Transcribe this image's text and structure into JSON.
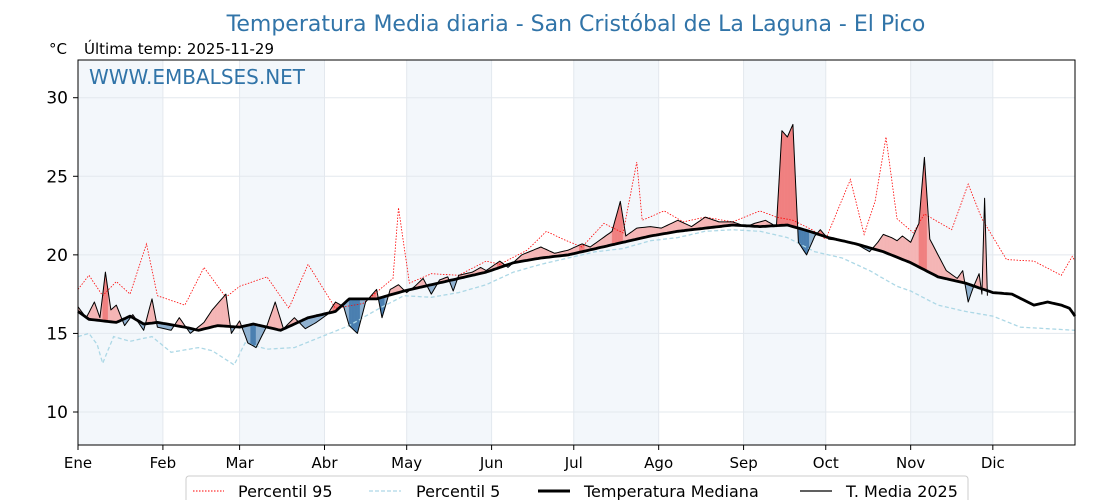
{
  "chart_data": {
    "type": "line",
    "title": "Temperatura Media diaria - San Cristóbal de La Laguna - El Pico",
    "subtitle": "Última temp: 2025-11-29",
    "ylabel": "°C",
    "xlabel": "",
    "watermark": "WWW.EMBALSES.NET",
    "ylim": [
      7.9,
      32.4
    ],
    "xlim": [
      1,
      365
    ],
    "y_ticks": [
      10,
      15,
      20,
      25,
      30
    ],
    "x_ticks": [
      {
        "day": 1,
        "label": "Ene"
      },
      {
        "day": 32,
        "label": "Feb"
      },
      {
        "day": 60,
        "label": "Mar"
      },
      {
        "day": 91,
        "label": "Abr"
      },
      {
        "day": 121,
        "label": "May"
      },
      {
        "day": 152,
        "label": "Jun"
      },
      {
        "day": 182,
        "label": "Jul"
      },
      {
        "day": 213,
        "label": "Ago"
      },
      {
        "day": 244,
        "label": "Sep"
      },
      {
        "day": 274,
        "label": "Oct"
      },
      {
        "day": 305,
        "label": "Nov"
      },
      {
        "day": 335,
        "label": "Dic"
      }
    ],
    "shaded_months": [
      0,
      2,
      4,
      6,
      8,
      10
    ],
    "grid": true,
    "legend_position": "bottom",
    "last_day_2025": 333,
    "series": [
      {
        "name": "Percentil 95",
        "color": "#ff0000",
        "style": "dotted",
        "anchors": [
          [
            1,
            17.8
          ],
          [
            5,
            18.7
          ],
          [
            10,
            17.4
          ],
          [
            15,
            18.3
          ],
          [
            20,
            17.5
          ],
          [
            26,
            20.7
          ],
          [
            30,
            17.4
          ],
          [
            40,
            16.8
          ],
          [
            47,
            19.2
          ],
          [
            55,
            17.3
          ],
          [
            60,
            18.0
          ],
          [
            70,
            18.6
          ],
          [
            78,
            16.6
          ],
          [
            85,
            19.4
          ],
          [
            95,
            16.6
          ],
          [
            105,
            16.9
          ],
          [
            116,
            18.5
          ],
          [
            118,
            23.0
          ],
          [
            122,
            18.2
          ],
          [
            130,
            18.8
          ],
          [
            140,
            18.7
          ],
          [
            150,
            19.6
          ],
          [
            155,
            19.4
          ],
          [
            165,
            20.3
          ],
          [
            172,
            21.5
          ],
          [
            178,
            21.0
          ],
          [
            185,
            20.5
          ],
          [
            193,
            22.0
          ],
          [
            200,
            21.4
          ],
          [
            205,
            25.9
          ],
          [
            207,
            22.2
          ],
          [
            215,
            22.8
          ],
          [
            222,
            22.1
          ],
          [
            230,
            22.4
          ],
          [
            240,
            22.1
          ],
          [
            250,
            22.8
          ],
          [
            256,
            22.4
          ],
          [
            262,
            22.2
          ],
          [
            269,
            21.6
          ],
          [
            274,
            21.0
          ],
          [
            283,
            24.8
          ],
          [
            288,
            21.3
          ],
          [
            292,
            23.4
          ],
          [
            296,
            27.5
          ],
          [
            300,
            22.3
          ],
          [
            306,
            21.4
          ],
          [
            310,
            22.6
          ],
          [
            320,
            21.6
          ],
          [
            326,
            24.5
          ],
          [
            331,
            22.3
          ],
          [
            340,
            19.7
          ],
          [
            350,
            19.6
          ],
          [
            360,
            18.7
          ],
          [
            364,
            19.9
          ],
          [
            365,
            19.6
          ]
        ]
      },
      {
        "name": "Percentil 5",
        "color": "#add8e6",
        "style": "dashed",
        "anchors": [
          [
            1,
            14.8
          ],
          [
            5,
            15.0
          ],
          [
            8,
            14.3
          ],
          [
            10,
            13.1
          ],
          [
            14,
            14.8
          ],
          [
            20,
            14.5
          ],
          [
            28,
            14.8
          ],
          [
            35,
            13.8
          ],
          [
            45,
            14.1
          ],
          [
            50,
            13.9
          ],
          [
            58,
            13.0
          ],
          [
            62,
            14.4
          ],
          [
            70,
            14.0
          ],
          [
            80,
            14.1
          ],
          [
            90,
            14.8
          ],
          [
            100,
            15.5
          ],
          [
            110,
            16.5
          ],
          [
            120,
            17.4
          ],
          [
            130,
            17.3
          ],
          [
            140,
            17.6
          ],
          [
            150,
            18.1
          ],
          [
            160,
            18.9
          ],
          [
            170,
            19.4
          ],
          [
            180,
            19.8
          ],
          [
            190,
            20.2
          ],
          [
            200,
            20.4
          ],
          [
            210,
            20.9
          ],
          [
            220,
            21.1
          ],
          [
            230,
            21.5
          ],
          [
            240,
            21.6
          ],
          [
            250,
            21.5
          ],
          [
            260,
            21.1
          ],
          [
            270,
            20.2
          ],
          [
            280,
            19.8
          ],
          [
            290,
            19.0
          ],
          [
            300,
            18.0
          ],
          [
            305,
            17.7
          ],
          [
            315,
            16.8
          ],
          [
            325,
            16.4
          ],
          [
            335,
            16.1
          ],
          [
            345,
            15.4
          ],
          [
            355,
            15.3
          ],
          [
            365,
            15.2
          ]
        ]
      },
      {
        "name": "Temperatura Mediana",
        "color": "#000000",
        "style": "solid-thick",
        "anchors": [
          [
            1,
            16.4
          ],
          [
            5,
            15.9
          ],
          [
            10,
            15.8
          ],
          [
            15,
            15.7
          ],
          [
            20,
            16.1
          ],
          [
            25,
            15.6
          ],
          [
            30,
            15.7
          ],
          [
            40,
            15.4
          ],
          [
            45,
            15.2
          ],
          [
            52,
            15.5
          ],
          [
            60,
            15.4
          ],
          [
            65,
            15.6
          ],
          [
            75,
            15.2
          ],
          [
            85,
            16.0
          ],
          [
            95,
            16.4
          ],
          [
            100,
            17.2
          ],
          [
            110,
            17.2
          ],
          [
            120,
            17.7
          ],
          [
            125,
            17.9
          ],
          [
            130,
            18.1
          ],
          [
            140,
            18.5
          ],
          [
            150,
            18.9
          ],
          [
            155,
            19.2
          ],
          [
            160,
            19.5
          ],
          [
            170,
            19.8
          ],
          [
            180,
            20.0
          ],
          [
            190,
            20.4
          ],
          [
            200,
            20.8
          ],
          [
            210,
            21.2
          ],
          [
            220,
            21.5
          ],
          [
            230,
            21.7
          ],
          [
            240,
            21.9
          ],
          [
            250,
            21.8
          ],
          [
            260,
            21.9
          ],
          [
            268,
            21.5
          ],
          [
            275,
            21.1
          ],
          [
            285,
            20.7
          ],
          [
            295,
            20.2
          ],
          [
            305,
            19.5
          ],
          [
            315,
            18.6
          ],
          [
            325,
            18.2
          ],
          [
            335,
            17.6
          ],
          [
            342,
            17.5
          ],
          [
            350,
            16.8
          ],
          [
            355,
            17.0
          ],
          [
            360,
            16.8
          ],
          [
            363,
            16.6
          ],
          [
            365,
            16.1
          ]
        ]
      },
      {
        "name": "T. Media 2025",
        "color": "#000000",
        "style": "solid-thin",
        "anchors": [
          [
            1,
            16.7
          ],
          [
            4,
            16.0
          ],
          [
            7,
            17.0
          ],
          [
            9,
            16.0
          ],
          [
            11,
            18.9
          ],
          [
            13,
            16.5
          ],
          [
            15,
            16.8
          ],
          [
            18,
            15.5
          ],
          [
            21,
            16.2
          ],
          [
            25,
            15.2
          ],
          [
            28,
            17.2
          ],
          [
            30,
            15.4
          ],
          [
            35,
            15.2
          ],
          [
            38,
            16.0
          ],
          [
            42,
            15.0
          ],
          [
            47,
            15.7
          ],
          [
            50,
            16.5
          ],
          [
            55,
            17.5
          ],
          [
            57,
            15.0
          ],
          [
            60,
            15.8
          ],
          [
            63,
            14.4
          ],
          [
            66,
            14.1
          ],
          [
            70,
            15.5
          ],
          [
            73,
            17.0
          ],
          [
            76,
            15.3
          ],
          [
            80,
            16.0
          ],
          [
            84,
            15.3
          ],
          [
            88,
            15.7
          ],
          [
            92,
            16.2
          ],
          [
            95,
            17.0
          ],
          [
            98,
            16.7
          ],
          [
            100,
            15.5
          ],
          [
            103,
            15.0
          ],
          [
            106,
            17.0
          ],
          [
            110,
            17.8
          ],
          [
            112,
            16.0
          ],
          [
            115,
            17.8
          ],
          [
            118,
            18.1
          ],
          [
            121,
            17.6
          ],
          [
            124,
            18.0
          ],
          [
            127,
            18.5
          ],
          [
            130,
            17.5
          ],
          [
            133,
            18.4
          ],
          [
            136,
            18.6
          ],
          [
            138,
            17.7
          ],
          [
            140,
            18.7
          ],
          [
            145,
            18.9
          ],
          [
            148,
            19.2
          ],
          [
            150,
            19.0
          ],
          [
            155,
            19.6
          ],
          [
            158,
            19.2
          ],
          [
            163,
            20.0
          ],
          [
            170,
            20.5
          ],
          [
            175,
            20.1
          ],
          [
            180,
            20.3
          ],
          [
            185,
            20.7
          ],
          [
            188,
            20.5
          ],
          [
            192,
            21.0
          ],
          [
            196,
            21.5
          ],
          [
            199,
            23.4
          ],
          [
            201,
            21.2
          ],
          [
            205,
            21.7
          ],
          [
            210,
            21.8
          ],
          [
            214,
            21.7
          ],
          [
            220,
            22.2
          ],
          [
            225,
            21.8
          ],
          [
            230,
            22.4
          ],
          [
            235,
            22.1
          ],
          [
            240,
            22.1
          ],
          [
            245,
            21.8
          ],
          [
            248,
            22.0
          ],
          [
            252,
            22.2
          ],
          [
            256,
            21.8
          ],
          [
            258,
            27.9
          ],
          [
            260,
            27.5
          ],
          [
            262,
            28.3
          ],
          [
            264,
            20.8
          ],
          [
            267,
            20.0
          ],
          [
            270,
            21.2
          ],
          [
            272,
            21.6
          ],
          [
            275,
            21.0
          ],
          [
            280,
            20.9
          ],
          [
            285,
            20.7
          ],
          [
            290,
            20.2
          ],
          [
            293,
            20.8
          ],
          [
            295,
            21.3
          ],
          [
            298,
            21.1
          ],
          [
            300,
            20.9
          ],
          [
            302,
            21.2
          ],
          [
            305,
            20.8
          ],
          [
            308,
            22.0
          ],
          [
            310,
            26.2
          ],
          [
            312,
            21.0
          ],
          [
            315,
            20.0
          ],
          [
            318,
            19.0
          ],
          [
            322,
            18.5
          ],
          [
            324,
            19.0
          ],
          [
            326,
            17.0
          ],
          [
            328,
            18.0
          ],
          [
            330,
            18.8
          ],
          [
            331,
            17.5
          ],
          [
            332,
            23.6
          ],
          [
            333,
            17.4
          ]
        ]
      }
    ]
  },
  "legend": {
    "items": [
      "Percentil 95",
      "Percentil 5",
      "Temperatura Mediana",
      "T. Media 2025"
    ]
  },
  "colors": {
    "title": "#3174a8",
    "above_fill": "#f08080",
    "above_fill_light": "#f4b5b5",
    "below_fill": "#4a7fb0",
    "below_fill_light": "#8fb1d0",
    "band": "#f3f7fb",
    "grid": "#e3e8ee"
  }
}
